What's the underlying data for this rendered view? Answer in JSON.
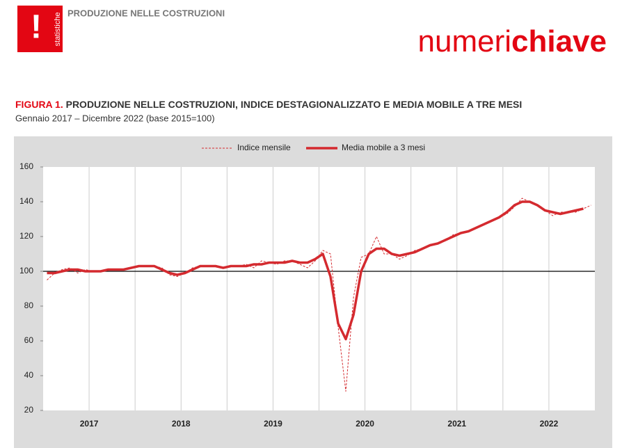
{
  "header": {
    "section": "PRODUZIONE NELLE COSTRUZIONI",
    "logo_text": "statistiche",
    "logo_mark": "!",
    "brand_light": "numeri",
    "brand_bold": "chiave"
  },
  "figure": {
    "label": "FIGURA 1.",
    "title": "PRODUZIONE NELLE COSTRUZIONI, INDICE DESTAGIONALIZZATO E MEDIA MOBILE A TRE MESI",
    "subtitle": "Gennaio 2017 – Dicembre 2022 (base 2015=100)"
  },
  "chart_data": {
    "type": "line",
    "years": [
      "2017",
      "2018",
      "2019",
      "2020",
      "2021",
      "2022"
    ],
    "ylim": [
      20,
      160
    ],
    "yticks": [
      20,
      40,
      60,
      80,
      100,
      120,
      140,
      160
    ],
    "reference_line": 100,
    "series": [
      {
        "name": "Indice mensile",
        "color": "#d42a2f",
        "dashed": true,
        "values": [
          95,
          99,
          101,
          102,
          99,
          101,
          100,
          100,
          101,
          101,
          101,
          102,
          103,
          103,
          103,
          102,
          98,
          97,
          99,
          102,
          103,
          103,
          103,
          102,
          103,
          103,
          104,
          102,
          106,
          105,
          104,
          106,
          106,
          104,
          102,
          106,
          112,
          110,
          68,
          31,
          85,
          108,
          110,
          120,
          110,
          110,
          107,
          109,
          112,
          113,
          115,
          116,
          118,
          121,
          122,
          123,
          125,
          127,
          129,
          131,
          133,
          137,
          142,
          140,
          138,
          135,
          132,
          134,
          134,
          134,
          136,
          138
        ]
      },
      {
        "name": "Media mobile a 3 mesi",
        "color": "#d42a2f",
        "dashed": false,
        "values": [
          99,
          99,
          100,
          101,
          101,
          100,
          100,
          100,
          101,
          101,
          101,
          102,
          103,
          103,
          103,
          101,
          99,
          98,
          99,
          101,
          103,
          103,
          103,
          102,
          103,
          103,
          103,
          104,
          104,
          105,
          105,
          105,
          106,
          105,
          105,
          107,
          110,
          97,
          70,
          61,
          75,
          100,
          110,
          113,
          113,
          110,
          109,
          110,
          111,
          113,
          115,
          116,
          118,
          120,
          122,
          123,
          125,
          127,
          129,
          131,
          134,
          138,
          140,
          140,
          138,
          135,
          134,
          133,
          134,
          135,
          136,
          null
        ]
      }
    ]
  }
}
